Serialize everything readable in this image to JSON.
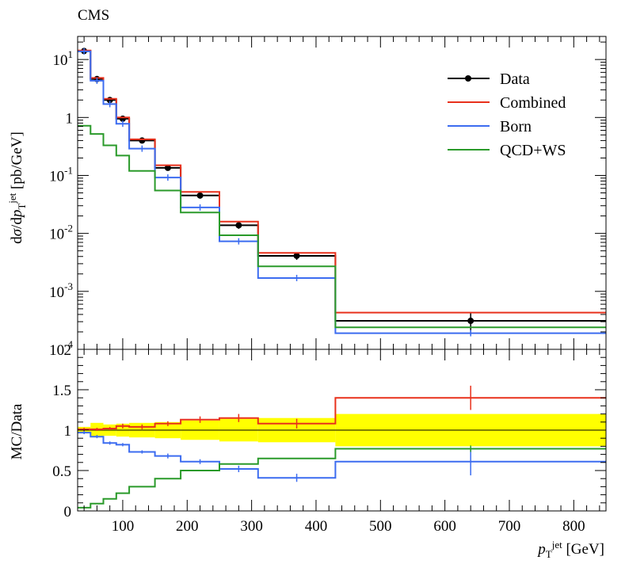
{
  "header": {
    "experiment": "CMS"
  },
  "chart_data": {
    "type": "line",
    "x_edges": [
      30,
      50,
      70,
      90,
      110,
      150,
      190,
      250,
      310,
      430,
      850
    ],
    "xlim": [
      30,
      850
    ],
    "xlabel": "p_T^jet [GeV]",
    "x_ticks": [
      "100",
      "200",
      "300",
      "400",
      "500",
      "600",
      "700",
      "800"
    ],
    "upper": {
      "ylabel": "dσ/dp_T^jet [pb/GeV]",
      "yscale": "log",
      "ylim": [
        0.0001,
        25
      ],
      "y_ticks": [
        "10^-4",
        "10^-3",
        "10^-2",
        "10^-1",
        "1",
        "10^1"
      ],
      "series": [
        {
          "name": "Data",
          "color": "#000000",
          "marker": "circle",
          "values": [
            14.0,
            4.6,
            2.0,
            0.95,
            0.4,
            0.135,
            0.045,
            0.0138,
            0.0041,
            0.00031
          ],
          "errors": [
            0.6,
            0.25,
            0.12,
            0.06,
            0.03,
            0.012,
            0.005,
            0.0018,
            0.0006,
            0.00013
          ]
        },
        {
          "name": "Combined",
          "color": "#e8311c",
          "values": [
            14.3,
            4.8,
            2.1,
            1.0,
            0.42,
            0.15,
            0.052,
            0.016,
            0.0046,
            0.00043
          ]
        },
        {
          "name": "Born",
          "color": "#3c6cf0",
          "values": [
            13.8,
            4.3,
            1.7,
            0.78,
            0.29,
            0.092,
            0.028,
            0.0073,
            0.0017,
            0.00019
          ]
        },
        {
          "name": "QCD+WS",
          "color": "#2a9a2a",
          "values": [
            0.72,
            0.52,
            0.33,
            0.22,
            0.12,
            0.055,
            0.023,
            0.0093,
            0.0027,
            0.00024
          ]
        }
      ]
    },
    "lower": {
      "ylabel": "MC/Data",
      "ylim": [
        0,
        2
      ],
      "y_ticks": [
        "0",
        "0.5",
        "1",
        "1.5",
        "2"
      ],
      "band": {
        "color": "#ffff00",
        "lo": [
          0.96,
          0.91,
          0.93,
          0.92,
          0.91,
          0.9,
          0.88,
          0.86,
          0.85,
          0.8
        ],
        "hi": [
          1.04,
          1.09,
          1.07,
          1.08,
          1.09,
          1.1,
          1.12,
          1.14,
          1.15,
          1.2
        ]
      },
      "series": [
        {
          "name": "Combined",
          "color": "#e8311c",
          "values": [
            1.01,
            1.01,
            1.02,
            1.05,
            1.04,
            1.08,
            1.13,
            1.15,
            1.08,
            1.4
          ],
          "errors": [
            0.02,
            0.02,
            0.02,
            0.03,
            0.03,
            0.03,
            0.04,
            0.05,
            0.06,
            0.15
          ]
        },
        {
          "name": "Born",
          "color": "#3c6cf0",
          "values": [
            0.97,
            0.92,
            0.84,
            0.82,
            0.73,
            0.68,
            0.61,
            0.52,
            0.41,
            0.61
          ],
          "errors": [
            0.02,
            0.02,
            0.02,
            0.02,
            0.02,
            0.03,
            0.03,
            0.04,
            0.05,
            0.17
          ]
        },
        {
          "name": "QCD+WS",
          "color": "#2a9a2a",
          "values": [
            0.04,
            0.09,
            0.15,
            0.22,
            0.3,
            0.4,
            0.5,
            0.58,
            0.65,
            0.77
          ],
          "errors": [
            0.0,
            0.0,
            0.0,
            0.0,
            0.0,
            0.0,
            0.0,
            0.0,
            0.0,
            0.04
          ]
        }
      ]
    },
    "legend": {
      "placement": "top-right",
      "entries": [
        "Data",
        "Combined",
        "Born",
        "QCD+WS"
      ]
    }
  }
}
